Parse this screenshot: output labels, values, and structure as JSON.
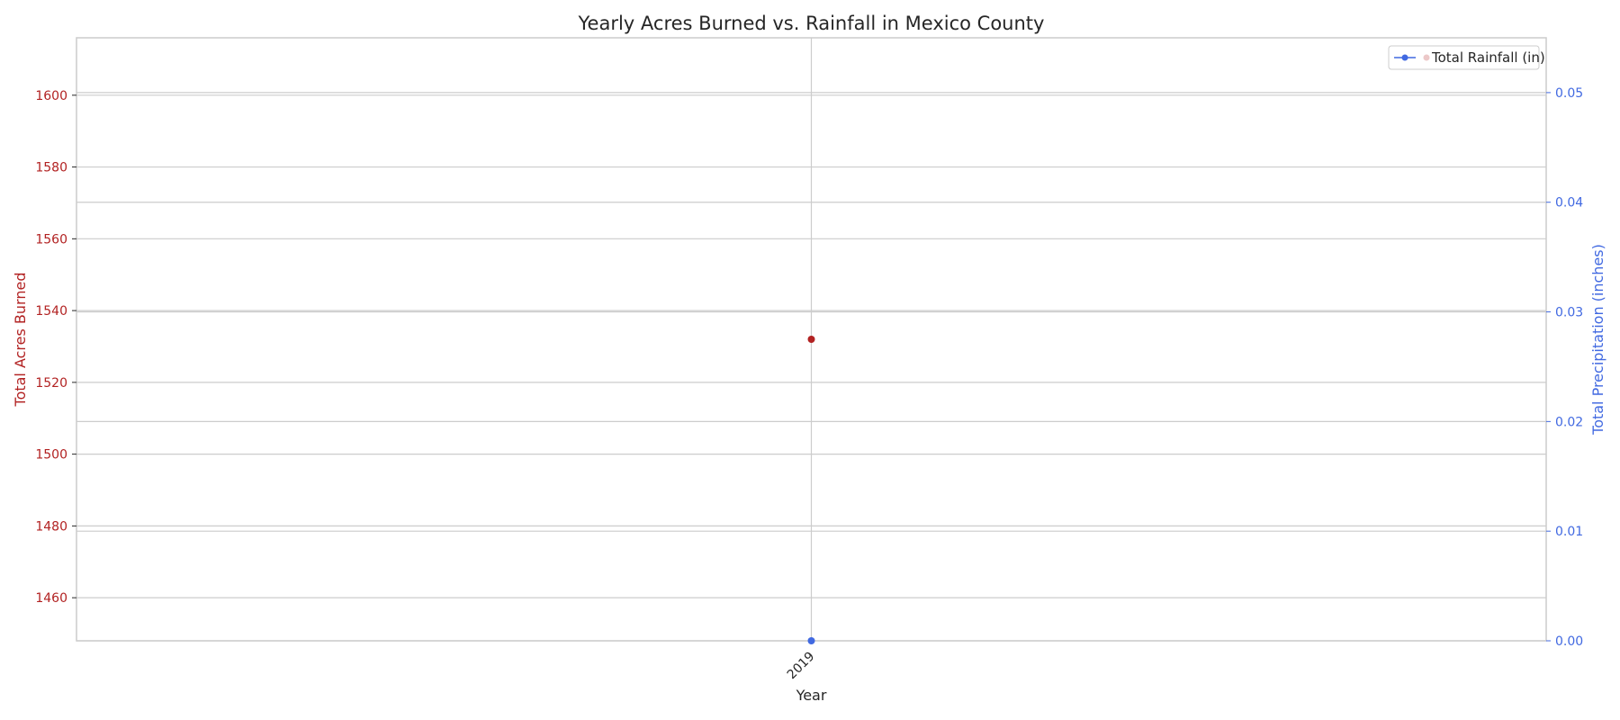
{
  "chart_data": {
    "type": "scatter",
    "title": "Yearly Acres Burned vs. Rainfall in Mexico County",
    "xlabel": "Year",
    "ylabel_left": "Total Acres Burned",
    "ylabel_right": "Total Precipitation (inches)",
    "categories": [
      "2019"
    ],
    "y_left": {
      "lim": [
        1448,
        1616
      ],
      "ticks": [
        1460,
        1480,
        1500,
        1520,
        1540,
        1560,
        1580,
        1600
      ],
      "color": "#b22222"
    },
    "y_right": {
      "lim": [
        0,
        0.055
      ],
      "ticks": [
        0.0,
        0.01,
        0.02,
        0.03,
        0.04,
        0.05
      ],
      "tick_labels": [
        "0.00",
        "0.01",
        "0.02",
        "0.03",
        "0.04",
        "0.05"
      ],
      "color": "#4169e1"
    },
    "series": [
      {
        "name": "Total Acres Burned",
        "axis": "left",
        "values": [
          1532
        ],
        "color": "#b22222"
      },
      {
        "name": "Total Rainfall (in)",
        "axis": "right",
        "values": [
          0.0
        ],
        "color": "#4169e1"
      }
    ],
    "grid": true,
    "legend": {
      "placement": "top-right",
      "entries": [
        "Total Rainfall (in)"
      ]
    }
  }
}
